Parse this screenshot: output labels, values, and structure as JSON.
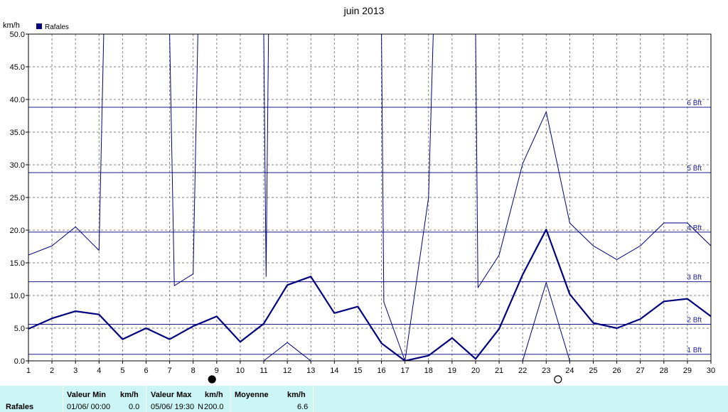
{
  "chart_data": {
    "type": "line",
    "title": "juin 2013",
    "ylabel": "km/h",
    "legend": {
      "label": "Rafales",
      "position": "top-left"
    },
    "ylim": [
      0,
      50
    ],
    "xlim": [
      1,
      30
    ],
    "y_ticks": [
      "0.0",
      "5.0",
      "10.0",
      "15.0",
      "20.0",
      "25.0",
      "30.0",
      "35.0",
      "40.0",
      "45.0",
      "50.0"
    ],
    "x_ticks": [
      "1",
      "2",
      "3",
      "4",
      "5",
      "6",
      "7",
      "8",
      "9",
      "10",
      "11",
      "12",
      "13",
      "14",
      "15",
      "16",
      "17",
      "18",
      "19",
      "20",
      "21",
      "22",
      "23",
      "24",
      "25",
      "26",
      "27",
      "28",
      "29",
      "30"
    ],
    "grid": true,
    "beaufort": [
      {
        "label": "1 Bft",
        "value": 1.0
      },
      {
        "label": "2 Bft",
        "value": 5.6
      },
      {
        "label": "3 Bft",
        "value": 12.1
      },
      {
        "label": "4 Bft",
        "value": 19.7
      },
      {
        "label": "5 Bft",
        "value": 28.8
      },
      {
        "label": "6 Bft",
        "value": 38.8
      }
    ],
    "moon_phases": [
      {
        "phase": "new-moon",
        "x": 8.8
      },
      {
        "phase": "full-moon",
        "x": 23.5
      }
    ],
    "series": [
      {
        "role": "average",
        "color": "#00007f",
        "points": [
          [
            1,
            4.9
          ],
          [
            2,
            6.5
          ],
          [
            3,
            7.6
          ],
          [
            4,
            7.1
          ],
          [
            5,
            3.3
          ],
          [
            6,
            5.0
          ],
          [
            7,
            3.3
          ],
          [
            8,
            5.3
          ],
          [
            9,
            6.8
          ],
          [
            10,
            2.9
          ],
          [
            11,
            5.7
          ],
          [
            12,
            11.6
          ],
          [
            13,
            12.9
          ],
          [
            14,
            7.3
          ],
          [
            15,
            8.3
          ],
          [
            16,
            2.7
          ],
          [
            17,
            0.0
          ],
          [
            18,
            0.8
          ],
          [
            19,
            3.5
          ],
          [
            20,
            0.3
          ],
          [
            21,
            4.9
          ],
          [
            22,
            13.2
          ],
          [
            23,
            20.1
          ],
          [
            24,
            10.2
          ],
          [
            25,
            5.8
          ],
          [
            26,
            5.0
          ],
          [
            27,
            6.4
          ],
          [
            28,
            9.1
          ],
          [
            29,
            9.5
          ],
          [
            30,
            6.8
          ]
        ]
      },
      {
        "role": "maximum",
        "color": "#00007f",
        "points": [
          [
            1,
            16.2
          ],
          [
            2,
            17.6
          ],
          [
            3,
            20.5
          ],
          [
            4,
            16.9
          ],
          [
            4.2,
            50
          ],
          [
            7,
            50
          ],
          [
            7.2,
            11.5
          ],
          [
            8,
            13.3
          ],
          [
            8.2,
            50
          ],
          [
            11,
            50
          ],
          [
            11.1,
            12.9
          ],
          [
            11.2,
            50
          ],
          [
            16,
            50
          ],
          [
            16.1,
            9.0
          ],
          [
            17,
            0.0
          ],
          [
            18,
            25.0
          ],
          [
            18.2,
            50
          ],
          [
            20,
            50
          ],
          [
            20.1,
            11.2
          ],
          [
            21,
            16.2
          ],
          [
            22,
            30.2
          ],
          [
            23,
            38.1
          ],
          [
            24,
            21.1
          ],
          [
            25,
            17.6
          ],
          [
            26,
            15.5
          ],
          [
            27,
            17.6
          ],
          [
            28,
            21.1
          ],
          [
            29,
            21.1
          ],
          [
            30,
            17.6
          ]
        ]
      },
      {
        "role": "minimum",
        "color": "#00007f",
        "points": [
          [
            11,
            0.0
          ],
          [
            12,
            2.8
          ],
          [
            13,
            0.0
          ],
          [
            22,
            0.0
          ],
          [
            23,
            12.0
          ],
          [
            24,
            0.0
          ]
        ]
      }
    ]
  },
  "stats": {
    "row_label": "Rafales",
    "min_header": "Valeur Min",
    "min_unit": "km/h",
    "min_date": "01/06/  00:00",
    "min_value": "0.0",
    "max_header": "Valeur Max",
    "max_unit": "km/h",
    "max_date": "05/06/  19:30",
    "max_dir": "N",
    "max_value": "200.0",
    "avg_header": "Moyenne",
    "avg_unit": "km/h",
    "avg_value": "6.6"
  },
  "colors": {
    "series": "#00007f",
    "grid": "#808080",
    "beaufort": "#1a1a8c",
    "stats_bg": "#ccf5f5"
  }
}
